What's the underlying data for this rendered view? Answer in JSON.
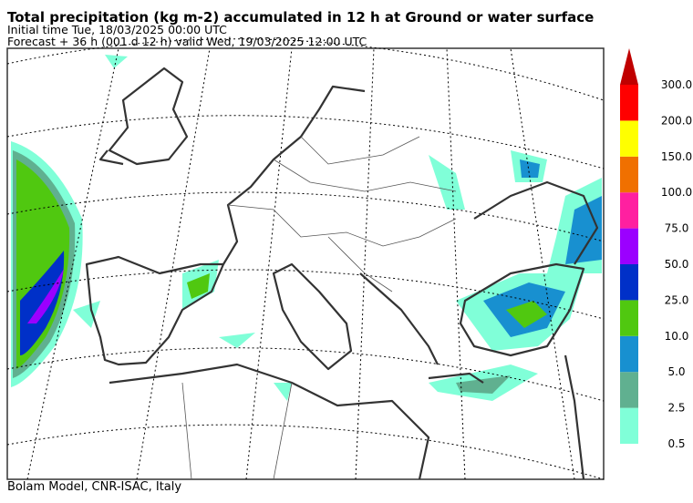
{
  "header": {
    "title": "Total precipitation (kg m-2) accumulated in  12 h at Ground or water surface",
    "initial_time": "Initial time  Tue, 18/03/2025  00:00 UTC",
    "forecast": "Forecast  +  36 h  (001 d 12 h)  valid Wed, 19/03/2025 12:00 UTC"
  },
  "colorbar": {
    "levels": [
      "0.5",
      "2.5",
      "5.0",
      "10.0",
      "25.0",
      "50.0",
      "75.0",
      "100.0",
      "150.0",
      "200.0",
      "300.0"
    ],
    "colors": [
      "#80ffd8",
      "#60b090",
      "#1890d0",
      "#50c810",
      "#0030c8",
      "#9b00ff",
      "#ff20a0",
      "#f07000",
      "#ffff00",
      "#ff0000"
    ],
    "arrow_color": "#c00000"
  },
  "footer": "Bolam Model, CNR-ISAC, Italy"
}
